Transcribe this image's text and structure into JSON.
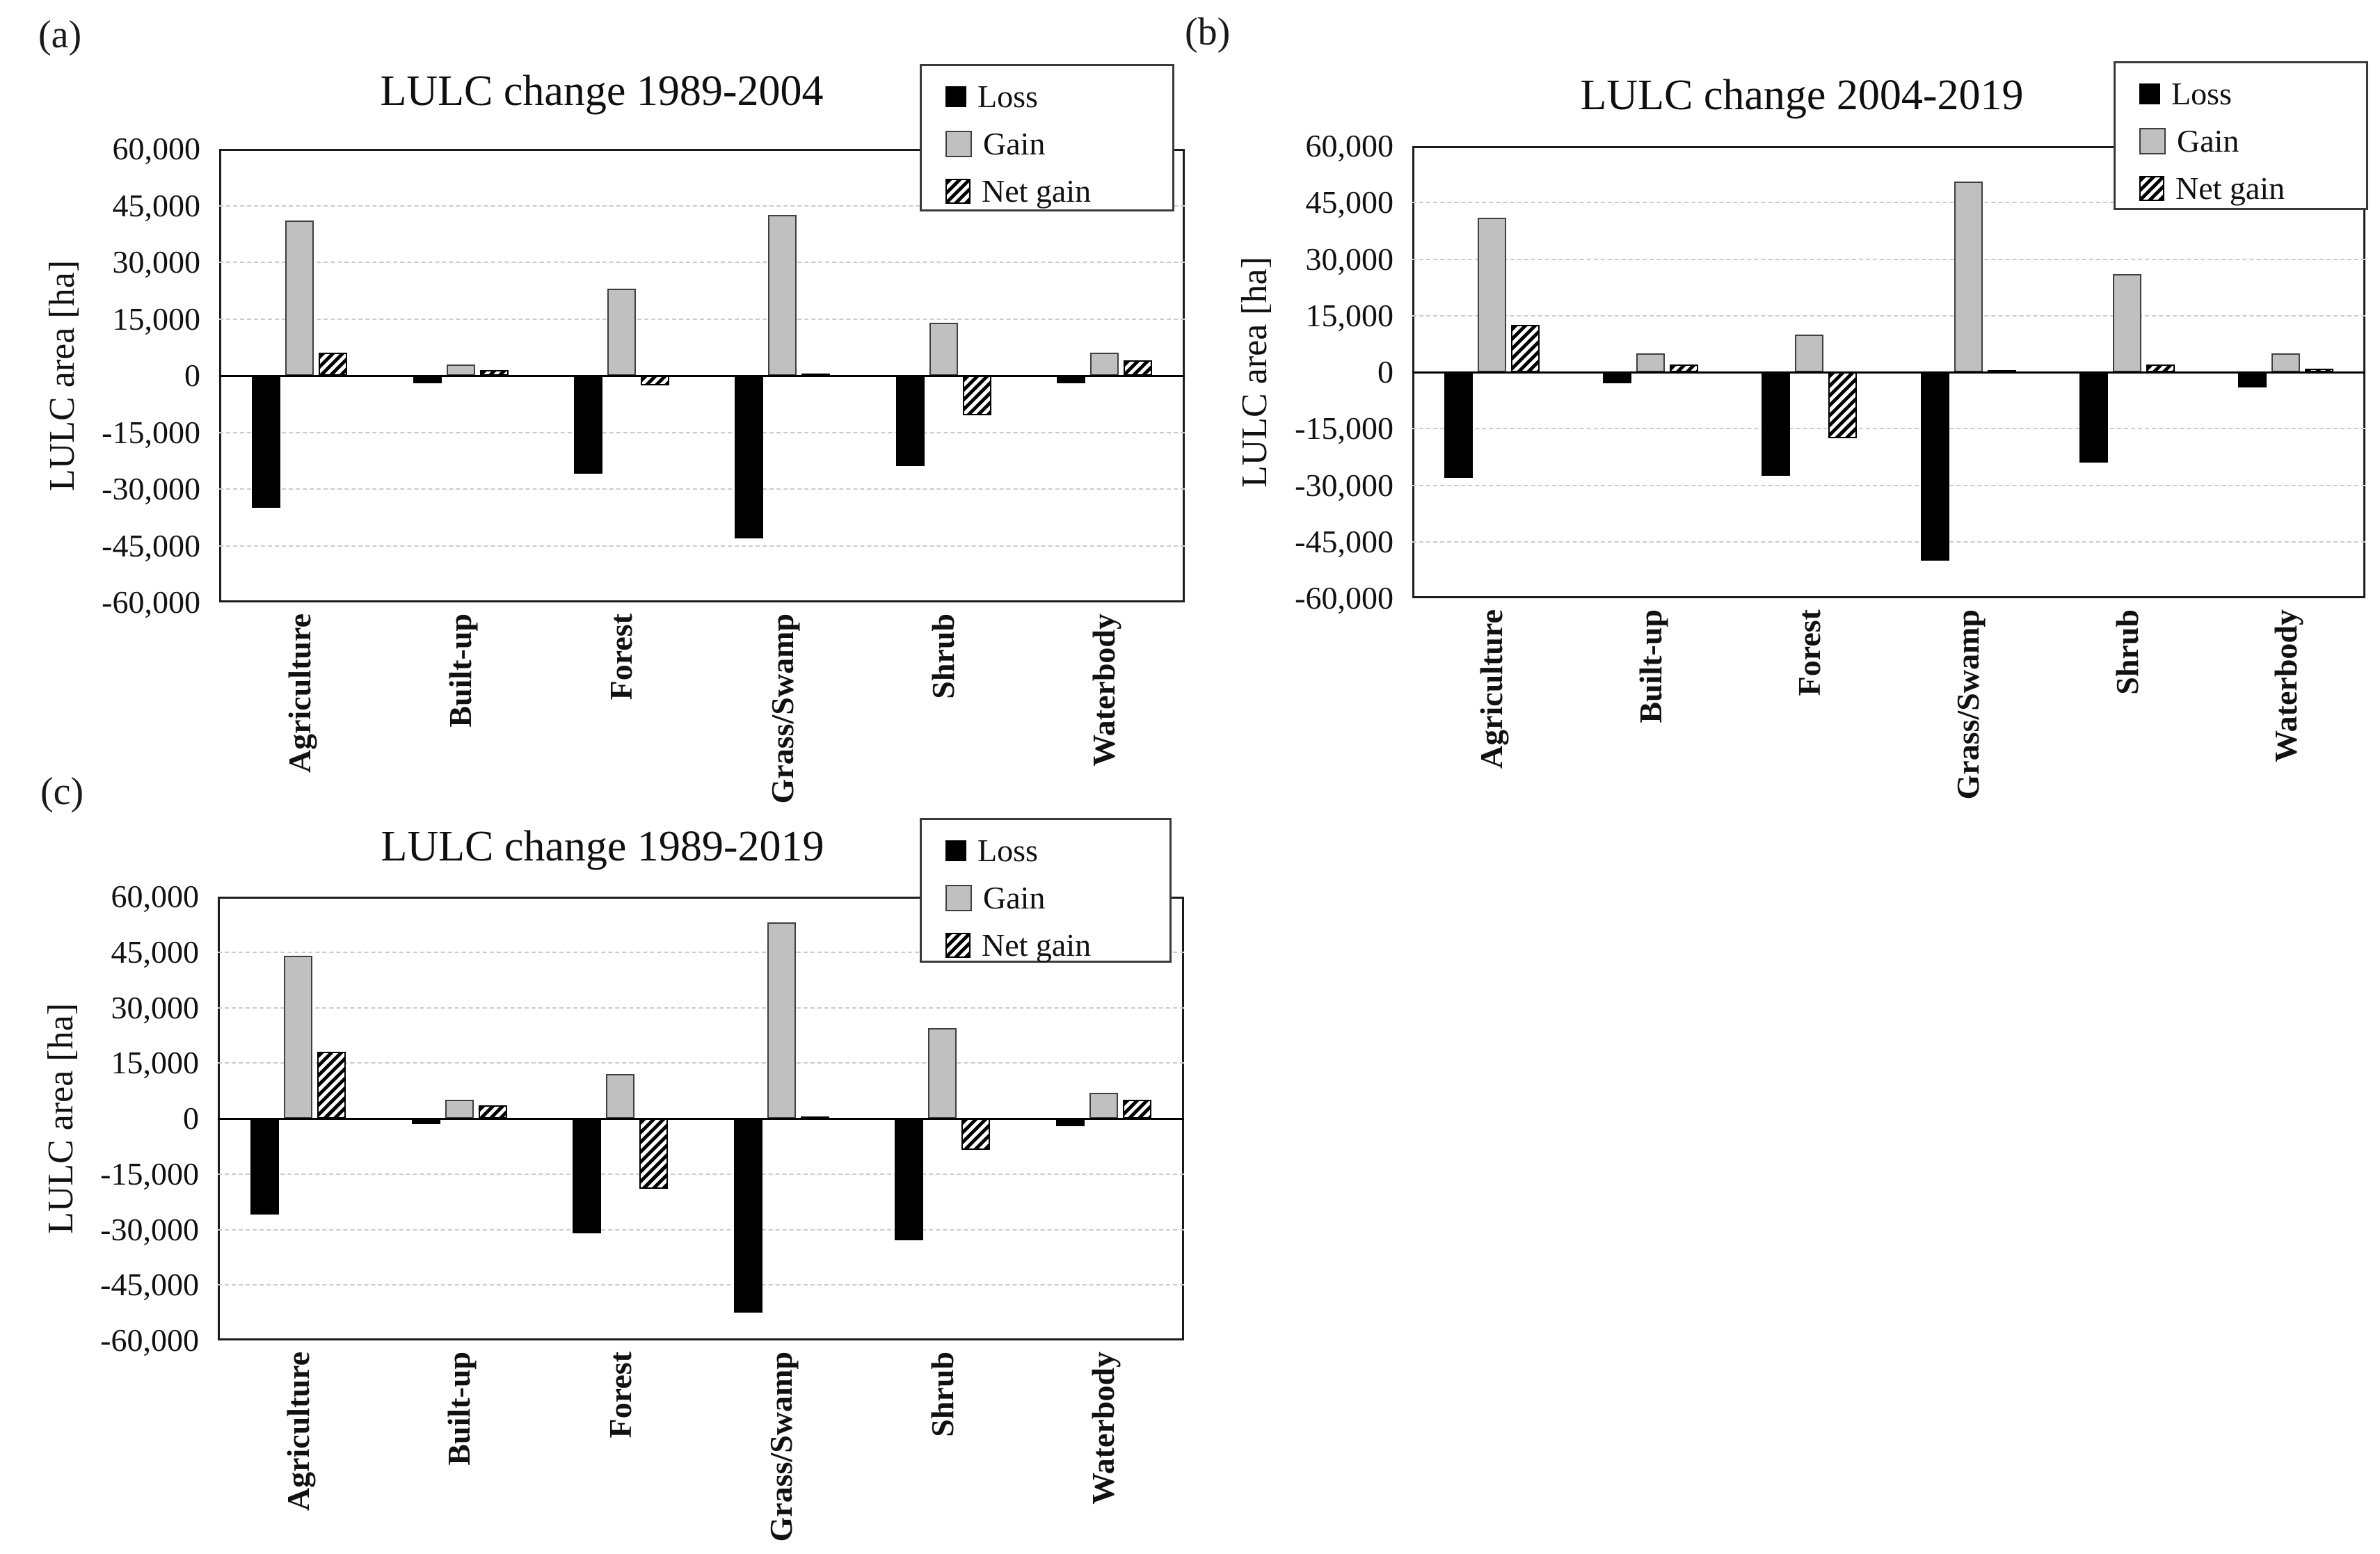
{
  "page": {
    "background": "#ffffff"
  },
  "colors": {
    "loss": "#000000",
    "gain_fill": "#c0c0c0",
    "gain_border": "#3f3f3f",
    "net_hatch_fg": "#000000",
    "net_hatch_bg": "#ffffff",
    "gridline": "#cbcbcb",
    "plot_border": "#1c1c1c",
    "zero_line": "#000000",
    "legend_border": "#3a3a3a"
  },
  "chart_data": [
    {
      "type": "bar",
      "panel_label": "(a)",
      "title": "LULC change 1989-2004",
      "ylabel": "LULC area [ha]",
      "ylim": [
        -60000,
        60000
      ],
      "ytick_step": 15000,
      "yticks": [
        "60,000",
        "45,000",
        "30,000",
        "15,000",
        "0",
        "-15,000",
        "-30,000",
        "-45,000",
        "-60,000"
      ],
      "categories": [
        "Agriculture",
        "Built-up",
        "Forest",
        "Grass/Swamp",
        "Shrub",
        "Waterbody"
      ],
      "series": [
        {
          "name": "Loss",
          "style": "solid-black",
          "values": [
            -35000,
            -2000,
            -26000,
            -43000,
            -24000,
            -2000
          ]
        },
        {
          "name": "Gain",
          "style": "solid-gray",
          "values": [
            41000,
            3000,
            23000,
            42500,
            14000,
            6000
          ]
        },
        {
          "name": "Net gain",
          "style": "hatched",
          "values": [
            6000,
            1500,
            -2500,
            500,
            -10500,
            4000
          ]
        }
      ],
      "legend": {
        "position": "top-right",
        "entries": [
          "Loss",
          "Gain",
          "Net gain"
        ]
      },
      "grid": {
        "horizontal": true,
        "style": "dashed"
      }
    },
    {
      "type": "bar",
      "panel_label": "(b)",
      "title": "LULC change 2004-2019",
      "ylabel": "LULC area [ha]",
      "ylim": [
        -60000,
        60000
      ],
      "ytick_step": 15000,
      "yticks": [
        "60,000",
        "45,000",
        "30,000",
        "15,000",
        "0",
        "-15,000",
        "-30,000",
        "-45,000",
        "-60,000"
      ],
      "categories": [
        "Agriculture",
        "Built-up",
        "Forest",
        "Grass/Swamp",
        "Shrub",
        "Waterbody"
      ],
      "series": [
        {
          "name": "Loss",
          "style": "solid-black",
          "values": [
            -28000,
            -3000,
            -27500,
            -50000,
            -24000,
            -4000
          ]
        },
        {
          "name": "Gain",
          "style": "solid-gray",
          "values": [
            41000,
            5000,
            10000,
            50500,
            26000,
            5000
          ]
        },
        {
          "name": "Net gain",
          "style": "hatched",
          "values": [
            12500,
            2000,
            -17500,
            500,
            2000,
            1000
          ]
        }
      ],
      "legend": {
        "position": "top-right",
        "entries": [
          "Loss",
          "Gain",
          "Net gain"
        ]
      },
      "grid": {
        "horizontal": true,
        "style": "dashed"
      }
    },
    {
      "type": "bar",
      "panel_label": "(c)",
      "title": "LULC change 1989-2019",
      "ylabel": "LULC area [ha]",
      "ylim": [
        -60000,
        60000
      ],
      "ytick_step": 15000,
      "yticks": [
        "60,000",
        "45,000",
        "30,000",
        "15,000",
        "0",
        "-15,000",
        "-30,000",
        "-45,000",
        "-60,000"
      ],
      "categories": [
        "Agriculture",
        "Built-up",
        "Forest",
        "Grass/Swamp",
        "Shrub",
        "Waterbody"
      ],
      "series": [
        {
          "name": "Loss",
          "style": "solid-black",
          "values": [
            -26000,
            -1500,
            -31000,
            -52500,
            -33000,
            -2000
          ]
        },
        {
          "name": "Gain",
          "style": "solid-gray",
          "values": [
            44000,
            5000,
            12000,
            53000,
            24500,
            7000
          ]
        },
        {
          "name": "Net gain",
          "style": "hatched",
          "values": [
            18000,
            3500,
            -19000,
            500,
            -8500,
            5000
          ]
        }
      ],
      "legend": {
        "position": "top-right",
        "entries": [
          "Loss",
          "Gain",
          "Net gain"
        ]
      },
      "grid": {
        "horizontal": true,
        "style": "dashed"
      }
    }
  ]
}
